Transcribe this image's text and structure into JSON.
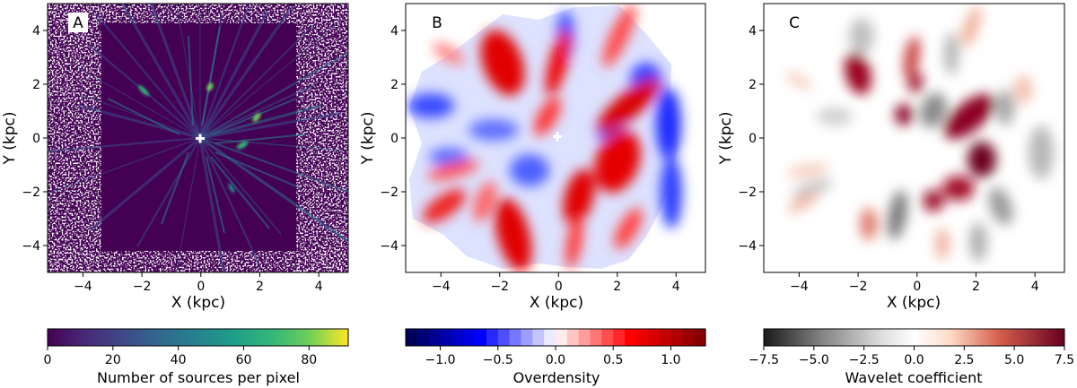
{
  "figure": {
    "panels": [
      {
        "letter": "A",
        "xlabel": "X (kpc)",
        "ylabel": "Y (kpc)",
        "xticks": [
          "−4",
          "−2",
          "0",
          "2",
          "4"
        ],
        "yticks": [
          "4",
          "2",
          "0",
          "−2",
          "−4"
        ],
        "colorbar": {
          "label": "Number of sources per pixel",
          "ticks": [
            "0",
            "20",
            "40",
            "60",
            "80"
          ],
          "colormap": "viridis"
        }
      },
      {
        "letter": "B",
        "xlabel": "X (kpc)",
        "ylabel": "Y (kpc)",
        "xticks": [
          "−4",
          "−2",
          "0",
          "2",
          "4"
        ],
        "yticks": [
          "4",
          "2",
          "0",
          "−2",
          "−4"
        ],
        "colorbar": {
          "label": "Overdensity",
          "ticks": [
            "−1.0",
            "−0.5",
            "0.0",
            "0.5",
            "1.0"
          ],
          "colormap": "seismic"
        }
      },
      {
        "letter": "C",
        "xlabel": "X (kpc)",
        "ylabel": "Y (kpc)",
        "xticks": [
          "−4",
          "−2",
          "0",
          "2",
          "4"
        ],
        "yticks": [
          "4",
          "2",
          "0",
          "−2",
          "−4"
        ],
        "colorbar": {
          "label": "Wavelet coefficient",
          "ticks": [
            "−7.5",
            "−5.0",
            "−2.5",
            "0.0",
            "2.5",
            "5.0",
            "7.5"
          ],
          "colormap": "RdGy_r"
        }
      }
    ]
  },
  "chart_data": [
    {
      "type": "heatmap",
      "panel": "A",
      "xlabel": "X (kpc)",
      "ylabel": "Y (kpc)",
      "xlim": [
        -5.2,
        5.0
      ],
      "ylim": [
        -5.0,
        5.0
      ],
      "sun_position": [
        0,
        0
      ],
      "colorbar": {
        "label": "Number of sources per pixel",
        "range": [
          0,
          92
        ],
        "ticks": [
          0,
          20,
          40,
          60,
          80
        ]
      },
      "features": [
        {
          "x": 0.4,
          "y": 1.8,
          "value": 75
        },
        {
          "x": -1.9,
          "y": 1.7,
          "value": 55
        },
        {
          "x": 2.0,
          "y": 0.7,
          "value": 65
        },
        {
          "x": 1.7,
          "y": -0.2,
          "value": 55
        },
        {
          "x": 1.5,
          "y": -1.7,
          "value": 45
        }
      ]
    },
    {
      "type": "heatmap",
      "panel": "B",
      "xlabel": "X (kpc)",
      "ylabel": "Y (kpc)",
      "xlim": [
        -5.2,
        5.0
      ],
      "ylim": [
        -5.0,
        5.0
      ],
      "sun_position": [
        0,
        0
      ],
      "colorbar": {
        "label": "Overdensity",
        "range": [
          -1.3,
          1.3
        ],
        "ticks": [
          -1.0,
          -0.5,
          0.0,
          0.5,
          1.0
        ]
      },
      "overdensities": [
        {
          "x": -1.9,
          "y": 2.5,
          "value": 0.9
        },
        {
          "x": 0.0,
          "y": 2.3,
          "value": 0.8
        },
        {
          "x": -0.4,
          "y": 0.8,
          "value": 0.6
        },
        {
          "x": 1.6,
          "y": 1.2,
          "value": 0.7
        },
        {
          "x": 2.4,
          "y": -0.8,
          "value": 1.0
        },
        {
          "x": 0.9,
          "y": -2.5,
          "value": 0.9
        },
        {
          "x": -1.5,
          "y": -3.4,
          "value": 0.8
        },
        {
          "x": -3.6,
          "y": -1.0,
          "value": 0.7
        }
      ],
      "underdensities": [
        {
          "x": -3.4,
          "y": 1.6,
          "value": -0.6
        },
        {
          "x": 3.5,
          "y": 0.7,
          "value": -0.7
        },
        {
          "x": 3.8,
          "y": -1.9,
          "value": -0.6
        },
        {
          "x": -0.8,
          "y": -1.3,
          "value": -0.5
        }
      ]
    },
    {
      "type": "heatmap",
      "panel": "C",
      "xlabel": "X (kpc)",
      "ylabel": "Y (kpc)",
      "xlim": [
        -5.2,
        5.0
      ],
      "ylim": [
        -5.0,
        5.0
      ],
      "sun_position": [
        0,
        0
      ],
      "colorbar": {
        "label": "Wavelet coefficient",
        "range": [
          -7.5,
          7.5
        ],
        "ticks": [
          -7.5,
          -5.0,
          -2.5,
          0.0,
          2.5,
          5.0,
          7.5
        ]
      },
      "positive_peaks": [
        {
          "x": -1.8,
          "y": 2.1,
          "value": 7.5
        },
        {
          "x": 0.1,
          "y": 2.3,
          "value": 5.5
        },
        {
          "x": -0.5,
          "y": 0.8,
          "value": 7.0
        },
        {
          "x": 1.8,
          "y": 0.6,
          "value": 7.0
        },
        {
          "x": 2.4,
          "y": -0.9,
          "value": 7.5
        },
        {
          "x": 1.5,
          "y": -1.9,
          "value": 6.5
        },
        {
          "x": 0.8,
          "y": -2.3,
          "value": 6.5
        },
        {
          "x": -1.5,
          "y": -3.4,
          "value": 3.5
        }
      ],
      "negative_troughs": [
        {
          "x": 0.5,
          "y": 1.0,
          "value": -4.5
        },
        {
          "x": 3.0,
          "y": 0.8,
          "value": -3.5
        },
        {
          "x": -0.7,
          "y": -3.0,
          "value": -4.0
        },
        {
          "x": 3.1,
          "y": -2.5,
          "value": -3.0
        }
      ]
    }
  ]
}
